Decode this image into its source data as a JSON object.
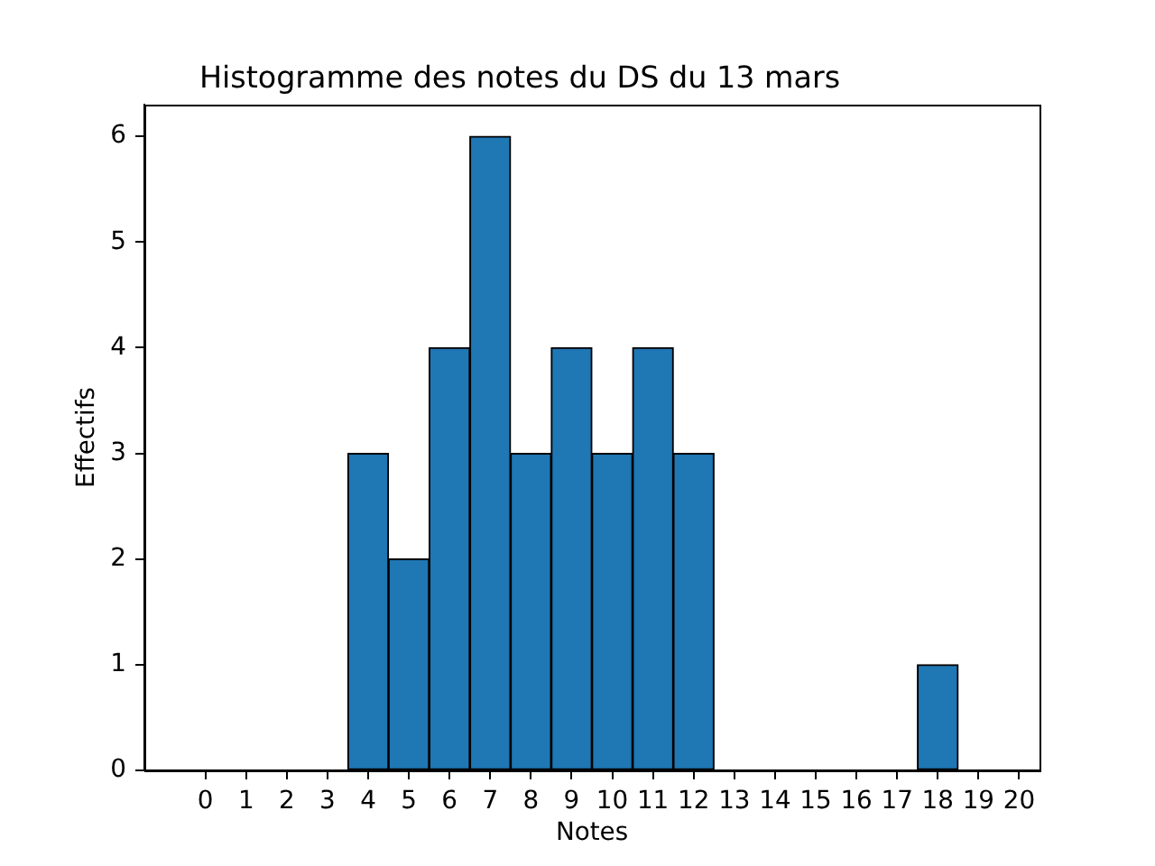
{
  "chart_data": {
    "type": "histogram",
    "title": "Histogramme des notes du DS du 13 mars",
    "xlabel": "Notes",
    "ylabel": "Effectifs",
    "bins": [
      -0.5,
      0.5,
      1.5,
      2.5,
      3.5,
      4.5,
      5.5,
      6.5,
      7.5,
      8.5,
      9.5,
      10.5,
      11.5,
      12.5,
      13.5,
      14.5,
      15.5,
      16.5,
      17.5,
      18.5,
      19.5
    ],
    "values": [
      0,
      0,
      0,
      0,
      3,
      2,
      4,
      6,
      3,
      4,
      3,
      4,
      3,
      0,
      0,
      0,
      0,
      0,
      1,
      0
    ],
    "color": "#1f77b4",
    "xlim": [
      -1.5,
      20.5
    ],
    "xticks": [
      0,
      1,
      2,
      3,
      4,
      5,
      6,
      7,
      8,
      9,
      10,
      11,
      12,
      13,
      14,
      15,
      16,
      17,
      18,
      19,
      20
    ],
    "ylim": [
      0,
      6.3
    ],
    "yticks": [
      0,
      1,
      2,
      3,
      4,
      5,
      6
    ]
  }
}
